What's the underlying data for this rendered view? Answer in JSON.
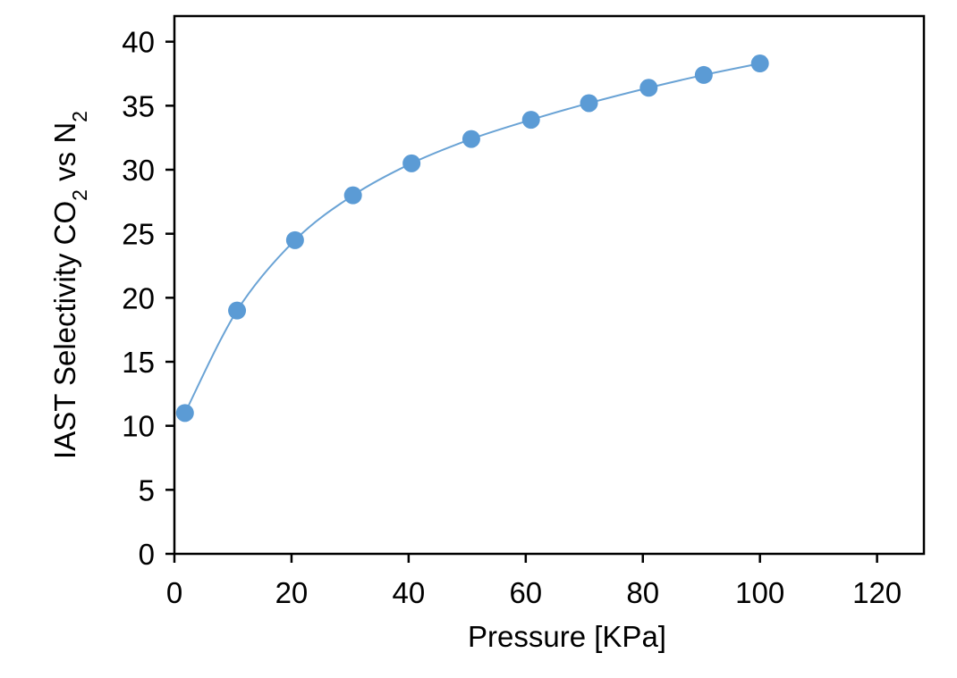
{
  "chart_data": {
    "type": "scatter",
    "xlabel": "Pressure [KPa]",
    "ylabel": {
      "prefix": "IAST Selectivity CO",
      "sub1": "2",
      "middle": " vs N",
      "sub2": "2"
    },
    "xlim": [
      0,
      128
    ],
    "ylim": [
      0,
      42
    ],
    "x_ticks": [
      0,
      20,
      40,
      60,
      80,
      100,
      120
    ],
    "y_ticks": [
      0,
      5,
      10,
      15,
      20,
      25,
      30,
      35,
      40
    ],
    "grid": false,
    "legend": false,
    "series": [
      {
        "marker": "circle",
        "with_fit_line": true,
        "x": [
          1.8,
          10.7,
          20.6,
          30.5,
          40.5,
          50.7,
          60.9,
          70.8,
          81.0,
          90.4,
          100.0
        ],
        "y": [
          11.0,
          19.0,
          24.5,
          28.0,
          30.5,
          32.4,
          33.9,
          35.2,
          36.4,
          37.4,
          38.3
        ]
      }
    ],
    "colors": {
      "marker": "#5b9bd5",
      "line": "#6aa3d5",
      "axes": "#000000"
    }
  }
}
